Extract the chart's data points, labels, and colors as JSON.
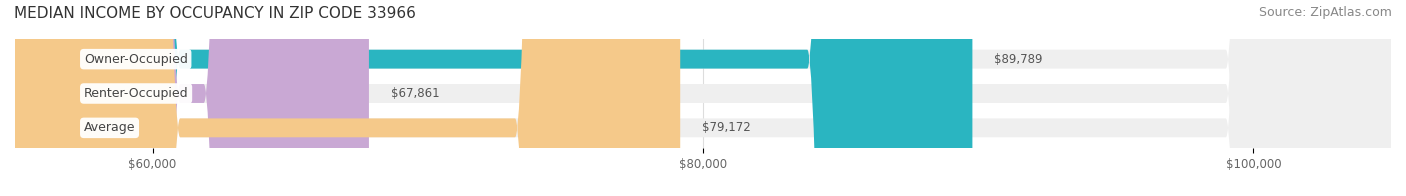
{
  "title": "MEDIAN INCOME BY OCCUPANCY IN ZIP CODE 33966",
  "source": "Source: ZipAtlas.com",
  "categories": [
    "Owner-Occupied",
    "Renter-Occupied",
    "Average"
  ],
  "values": [
    89789,
    67861,
    79172
  ],
  "bar_colors": [
    "#2ab5c1",
    "#c9a8d4",
    "#f5c98a"
  ],
  "bar_bg_color": "#efefef",
  "xlim": [
    55000,
    105000
  ],
  "xticks": [
    60000,
    80000,
    100000
  ],
  "xtick_labels": [
    "$60,000",
    "$80,000",
    "$100,000"
  ],
  "value_labels": [
    "$89,789",
    "$67,861",
    "$79,172"
  ],
  "title_fontsize": 11,
  "source_fontsize": 9,
  "label_fontsize": 9,
  "value_fontsize": 8.5,
  "bar_height": 0.55,
  "figsize": [
    14.06,
    1.96
  ],
  "dpi": 100
}
